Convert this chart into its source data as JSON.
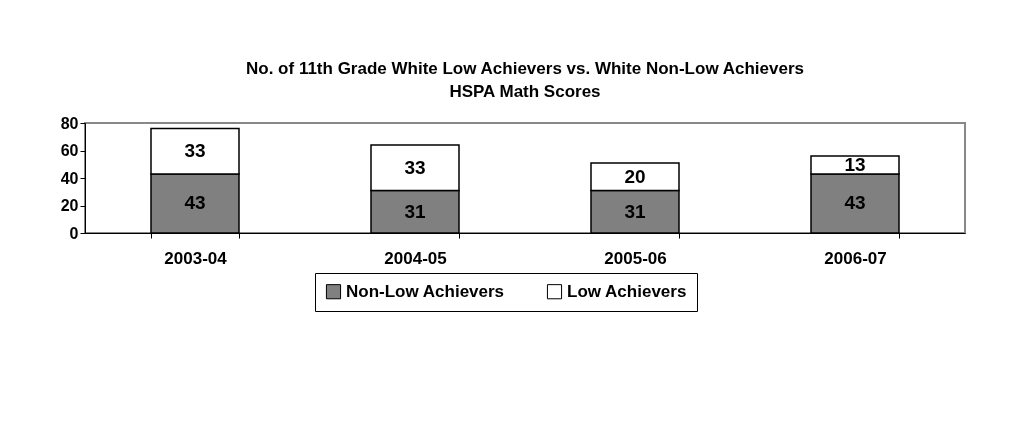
{
  "chart_data": {
    "type": "bar",
    "title": "No. of 11th Grade White Low Achievers vs.  White Non-Low Achievers",
    "subtitle": "HSPA Math Scores",
    "categories": [
      "2003-04",
      "2004-05",
      "2005-06",
      "2006-07"
    ],
    "stacked": true,
    "series": [
      {
        "name": "Non-Low Achievers",
        "color": "#808080",
        "values": [
          43,
          31,
          31,
          43
        ]
      },
      {
        "name": "Low Achievers",
        "color": "#ffffff",
        "values": [
          33,
          33,
          20,
          13
        ]
      }
    ],
    "ylim": [
      0,
      80
    ],
    "yticks": [
      0,
      20,
      40,
      60,
      80
    ],
    "data_labels": true,
    "legend": "bottom",
    "grid": false
  }
}
